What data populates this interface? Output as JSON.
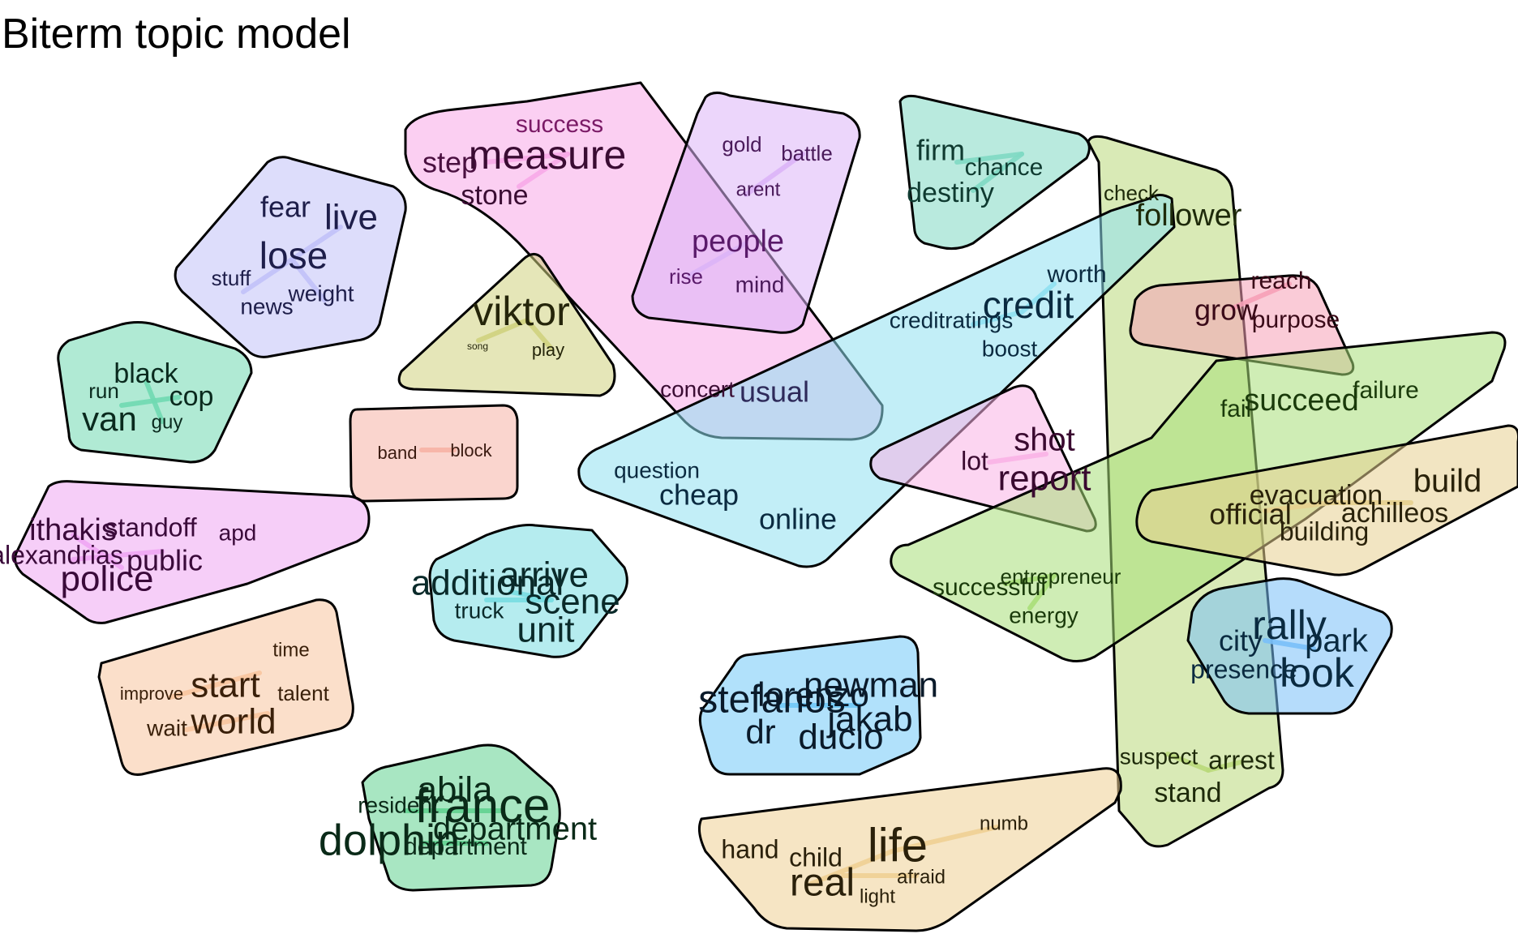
{
  "title": "Biterm topic model",
  "clusters": [
    {
      "id": "success",
      "color": "#f7a8e8",
      "words": [
        "success",
        "step",
        "measure",
        "stone",
        "concert",
        "usual"
      ]
    },
    {
      "id": "people",
      "color": "#dcb4f7",
      "words": [
        "gold",
        "battle",
        "arent",
        "people",
        "rise",
        "mind"
      ]
    },
    {
      "id": "firm",
      "color": "#7fd9c3",
      "words": [
        "firm",
        "chance",
        "destiny"
      ]
    },
    {
      "id": "follower",
      "color": "#b9d97a",
      "words": [
        "check",
        "follower",
        "suspect",
        "arrest",
        "stand"
      ]
    },
    {
      "id": "fear",
      "color": "#c1c1f8",
      "words": [
        "fear",
        "live",
        "lose",
        "stuff",
        "weight",
        "news"
      ]
    },
    {
      "id": "viktor",
      "color": "#cfd27e",
      "words": [
        "viktor",
        "song",
        "play"
      ]
    },
    {
      "id": "credit",
      "color": "#8fe0f1",
      "words": [
        "worth",
        "credit",
        "creditratings",
        "boost",
        "question",
        "cheap",
        "online"
      ]
    },
    {
      "id": "reach",
      "color": "#f6a0b7",
      "words": [
        "reach",
        "grow",
        "purpose"
      ]
    },
    {
      "id": "van",
      "color": "#70d9b1",
      "words": [
        "black",
        "run",
        "cop",
        "van",
        "guy"
      ]
    },
    {
      "id": "band",
      "color": "#f6b3a5",
      "words": [
        "band",
        "block"
      ]
    },
    {
      "id": "shot",
      "color": "#f9b2e6",
      "words": [
        "lot",
        "shot",
        "report"
      ]
    },
    {
      "id": "succeed",
      "color": "#a8de78",
      "words": [
        "fail",
        "succeed",
        "failure",
        "successful",
        "entrepreneur",
        "energy"
      ]
    },
    {
      "id": "build",
      "color": "#e7d08f",
      "words": [
        "build",
        "evacuation",
        "official",
        "achilleos",
        "building"
      ]
    },
    {
      "id": "police",
      "color": "#efa6f3",
      "words": [
        "ithakis",
        "standoff",
        "apd",
        "alexandrias",
        "public",
        "police"
      ]
    },
    {
      "id": "scene",
      "color": "#78dde1",
      "words": [
        "additional",
        "arrive",
        "truck",
        "scene",
        "unit"
      ]
    },
    {
      "id": "rally",
      "color": "#79bff8",
      "words": [
        "rally",
        "city",
        "park",
        "presence",
        "look"
      ]
    },
    {
      "id": "world",
      "color": "#f8c59f",
      "words": [
        "time",
        "improve",
        "start",
        "talent",
        "wait",
        "world"
      ]
    },
    {
      "id": "newman",
      "color": "#71c9f7",
      "words": [
        "stefanos",
        "lorenzo",
        "newman",
        "jakab",
        "dr",
        "ducio"
      ]
    },
    {
      "id": "france",
      "color": "#61d290",
      "words": [
        "abila",
        "resident",
        "france",
        "department",
        "dolphin",
        "department"
      ]
    },
    {
      "id": "life",
      "color": "#efcf94",
      "words": [
        "hand",
        "child",
        "life",
        "numb",
        "real",
        "afraid",
        "light"
      ]
    }
  ]
}
